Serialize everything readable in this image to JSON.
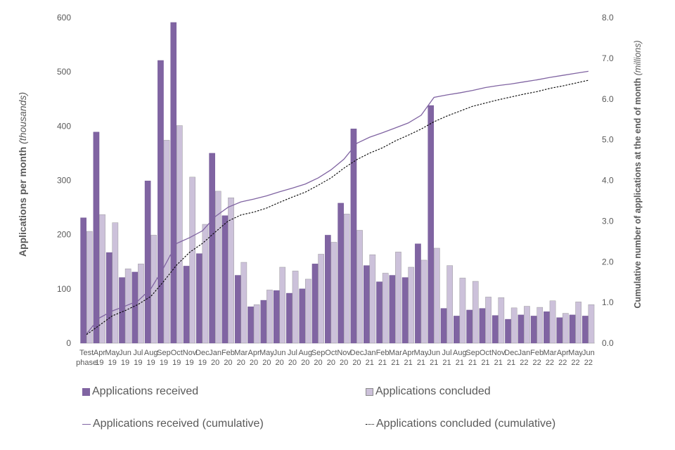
{
  "chart_data": {
    "type": "bar",
    "categories": [
      [
        "Test",
        "phase"
      ],
      [
        "Apr",
        "19"
      ],
      [
        "May",
        "19"
      ],
      [
        "Jun",
        "19"
      ],
      [
        "Jul",
        "19"
      ],
      [
        "Aug",
        "19"
      ],
      [
        "Sep",
        "19"
      ],
      [
        "Oct",
        "19"
      ],
      [
        "Nov",
        "19"
      ],
      [
        "Dec",
        "19"
      ],
      [
        "Jan",
        "20"
      ],
      [
        "Feb",
        "20"
      ],
      [
        "Mar",
        "20"
      ],
      [
        "Apr",
        "20"
      ],
      [
        "May",
        "20"
      ],
      [
        "Jun",
        "20"
      ],
      [
        "Jul",
        "20"
      ],
      [
        "Aug",
        "20"
      ],
      [
        "Sep",
        "20"
      ],
      [
        "Oct",
        "20"
      ],
      [
        "Nov",
        "20"
      ],
      [
        "Dec",
        "20"
      ],
      [
        "Jan",
        "21"
      ],
      [
        "Feb",
        "21"
      ],
      [
        "Mar",
        "21"
      ],
      [
        "Apr",
        "21"
      ],
      [
        "May",
        "21"
      ],
      [
        "Jun",
        "21"
      ],
      [
        "Jul",
        "21"
      ],
      [
        "Aug",
        "21"
      ],
      [
        "Sep",
        "21"
      ],
      [
        "Oct",
        "21"
      ],
      [
        "Nov",
        "21"
      ],
      [
        "Dec",
        "21"
      ],
      [
        "Jan",
        "22"
      ],
      [
        "Feb",
        "22"
      ],
      [
        "Mar",
        "22"
      ],
      [
        "Apr",
        "22"
      ],
      [
        "May",
        "22"
      ],
      [
        "Jun",
        "22"
      ]
    ],
    "series": [
      {
        "name": "Applications received",
        "kind": "bar",
        "axis": "left",
        "color": "#8064a2",
        "values": [
          231,
          389,
          167,
          121,
          131,
          299,
          521,
          591,
          142,
          165,
          350,
          235,
          125,
          67,
          79,
          97,
          92,
          100,
          146,
          199,
          258,
          395,
          143,
          113,
          125,
          121,
          183,
          438,
          64,
          50,
          61,
          64,
          51,
          44,
          52,
          50,
          58,
          47,
          52,
          50
        ]
      },
      {
        "name": "Applications concluded",
        "kind": "bar",
        "axis": "left",
        "color": "#ccc1da",
        "values": [
          206,
          237,
          222,
          137,
          146,
          199,
          374,
          401,
          306,
          219,
          280,
          268,
          149,
          71,
          98,
          140,
          133,
          118,
          164,
          186,
          238,
          208,
          163,
          129,
          168,
          140,
          153,
          175,
          143,
          120,
          114,
          85,
          84,
          65,
          68,
          66,
          78,
          55,
          76,
          71
        ]
      },
      {
        "name": "Applications received (cumulative)",
        "kind": "line",
        "axis": "right",
        "color": "#8064a2",
        "dash": "solid",
        "values": [
          0.23,
          0.62,
          0.79,
          0.91,
          1.04,
          1.34,
          1.86,
          2.45,
          2.59,
          2.76,
          3.11,
          3.34,
          3.47,
          3.54,
          3.62,
          3.72,
          3.81,
          3.91,
          4.06,
          4.26,
          4.52,
          4.91,
          5.06,
          5.17,
          5.29,
          5.41,
          5.6,
          6.04,
          6.1,
          6.15,
          6.21,
          6.28,
          6.33,
          6.37,
          6.42,
          6.47,
          6.53,
          6.58,
          6.63,
          6.68
        ]
      },
      {
        "name": "Applications concluded (cumulative)",
        "kind": "line",
        "axis": "right",
        "color": "#000000",
        "dash": "dotted",
        "values": [
          0.21,
          0.44,
          0.67,
          0.8,
          0.95,
          1.15,
          1.52,
          1.92,
          2.23,
          2.45,
          2.73,
          3.0,
          3.15,
          3.22,
          3.32,
          3.46,
          3.59,
          3.71,
          3.88,
          4.06,
          4.3,
          4.51,
          4.67,
          4.8,
          4.97,
          5.11,
          5.26,
          5.44,
          5.58,
          5.7,
          5.82,
          5.9,
          5.98,
          6.05,
          6.12,
          6.18,
          6.26,
          6.32,
          6.39,
          6.46
        ]
      }
    ],
    "ylabel": "Applications per month",
    "ylabel_unit": "(thousands)",
    "y2label": "Cumulative number of applications at the end of month",
    "y2label_unit": "(millions)",
    "ylim": [
      0,
      600
    ],
    "yticks": [
      "0",
      "100",
      "200",
      "300",
      "400",
      "500",
      "600"
    ],
    "y2lim": [
      0,
      8
    ],
    "y2ticks": [
      "0.0",
      "1.0",
      "2.0",
      "3.0",
      "4.0",
      "5.0",
      "6.0",
      "7.0",
      "8.0"
    ],
    "grid": false,
    "legend_position": "bottom"
  }
}
